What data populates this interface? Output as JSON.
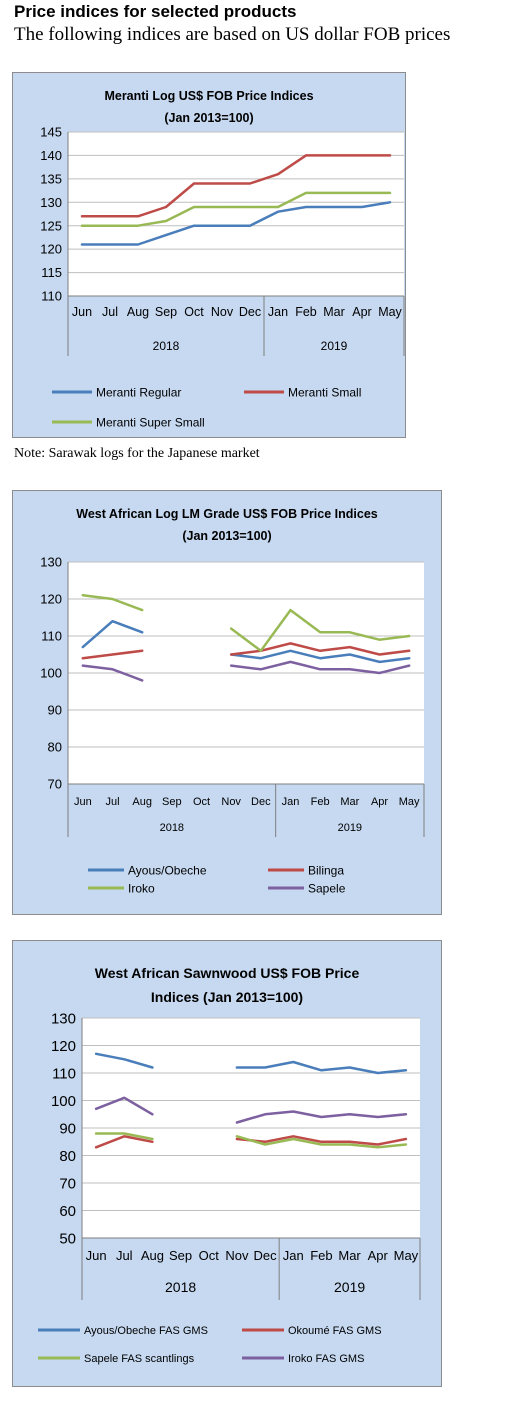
{
  "page": {
    "heading": "Price indices for selected products",
    "subheading": "The following indices are based on US dollar FOB prices",
    "note": "Note: Sarawak logs for the Japanese market"
  },
  "chart_data": [
    {
      "type": "line",
      "title": [
        "Meranti Log US$ FOB Price Indices",
        "(Jan 2013=100)"
      ],
      "categories": [
        "Jun",
        "Jul",
        "Aug",
        "Sep",
        "Oct",
        "Nov",
        "Dec",
        "Jan",
        "Feb",
        "Mar",
        "Apr",
        "May"
      ],
      "year_groups": [
        {
          "label": "2018",
          "count": 7
        },
        {
          "label": "2019",
          "count": 5
        }
      ],
      "ylim": [
        110,
        145
      ],
      "ytick_step": 5,
      "grid": true,
      "legend_position": "bottom",
      "colors": {
        "panel_bg": "#c6d9f1",
        "plot_bg": "#ffffff",
        "grid": "#bfbfbf",
        "axis": "#7f7f7f"
      },
      "series": [
        {
          "name": "Meranti Regular",
          "color": "#4a7ebb",
          "values": [
            121,
            121,
            121,
            123,
            125,
            125,
            125,
            128,
            129,
            129,
            129,
            130
          ]
        },
        {
          "name": "Meranti Small",
          "color": "#be4b48",
          "values": [
            127,
            127,
            127,
            129,
            134,
            134,
            134,
            136,
            140,
            140,
            140,
            140
          ]
        },
        {
          "name": "Meranti Super Small",
          "color": "#98b954",
          "values": [
            125,
            125,
            125,
            126,
            129,
            129,
            129,
            129,
            132,
            132,
            132,
            132
          ]
        }
      ]
    },
    {
      "type": "line",
      "title": [
        "West African Log LM Grade US$ FOB Price Indices",
        "(Jan 2013=100)"
      ],
      "categories": [
        "Jun",
        "Jul",
        "Aug",
        "Sep",
        "Oct",
        "Nov",
        "Dec",
        "Jan",
        "Feb",
        "Mar",
        "Apr",
        "May"
      ],
      "year_groups": [
        {
          "label": "2018",
          "count": 7
        },
        {
          "label": "2019",
          "count": 5
        }
      ],
      "ylim": [
        70,
        130
      ],
      "ytick_step": 10,
      "grid": true,
      "legend_position": "bottom",
      "colors": {
        "panel_bg": "#c6d9f1",
        "plot_bg": "#ffffff",
        "grid": "#bfbfbf",
        "axis": "#7f7f7f"
      },
      "series": [
        {
          "name": "Ayous/Obeche",
          "color": "#4a7ebb",
          "values": [
            107,
            114,
            111,
            null,
            null,
            105,
            104,
            106,
            104,
            105,
            103,
            104
          ]
        },
        {
          "name": "Bilinga",
          "color": "#be4b48",
          "values": [
            104,
            105,
            106,
            null,
            null,
            105,
            106,
            108,
            106,
            107,
            105,
            106
          ]
        },
        {
          "name": "Iroko",
          "color": "#98b954",
          "values": [
            121,
            120,
            117,
            null,
            null,
            112,
            106,
            117,
            111,
            111,
            109,
            110
          ]
        },
        {
          "name": "Sapele",
          "color": "#7d60a0",
          "values": [
            102,
            101,
            98,
            null,
            null,
            102,
            101,
            103,
            101,
            101,
            100,
            102
          ]
        }
      ]
    },
    {
      "type": "line",
      "title": [
        "West African Sawnwood US$ FOB Price",
        "Indices (Jan 2013=100)"
      ],
      "categories": [
        "Jun",
        "Jul",
        "Aug",
        "Sep",
        "Oct",
        "Nov",
        "Dec",
        "Jan",
        "Feb",
        "Mar",
        "Apr",
        "May"
      ],
      "year_groups": [
        {
          "label": "2018",
          "count": 7
        },
        {
          "label": "2019",
          "count": 5
        }
      ],
      "ylim": [
        50,
        130
      ],
      "ytick_step": 10,
      "grid": true,
      "legend_position": "bottom",
      "colors": {
        "panel_bg": "#c6d9f1",
        "plot_bg": "#ffffff",
        "grid": "#bfbfbf",
        "axis": "#7f7f7f"
      },
      "series": [
        {
          "name": "Ayous/Obeche FAS GMS",
          "color": "#4a7ebb",
          "values": [
            117,
            115,
            112,
            null,
            null,
            112,
            112,
            114,
            111,
            112,
            110,
            111
          ]
        },
        {
          "name": "Okoumé FAS GMS",
          "color": "#be4b48",
          "values": [
            83,
            87,
            85,
            null,
            null,
            86,
            85,
            87,
            85,
            85,
            84,
            86
          ]
        },
        {
          "name": "Sapele FAS scantlings",
          "color": "#98b954",
          "values": [
            88,
            88,
            86,
            null,
            null,
            87,
            84,
            86,
            84,
            84,
            83,
            84
          ]
        },
        {
          "name": "Iroko FAS GMS",
          "color": "#7d60a0",
          "values": [
            97,
            101,
            95,
            null,
            null,
            92,
            95,
            96,
            94,
            95,
            94,
            95
          ]
        }
      ]
    }
  ]
}
